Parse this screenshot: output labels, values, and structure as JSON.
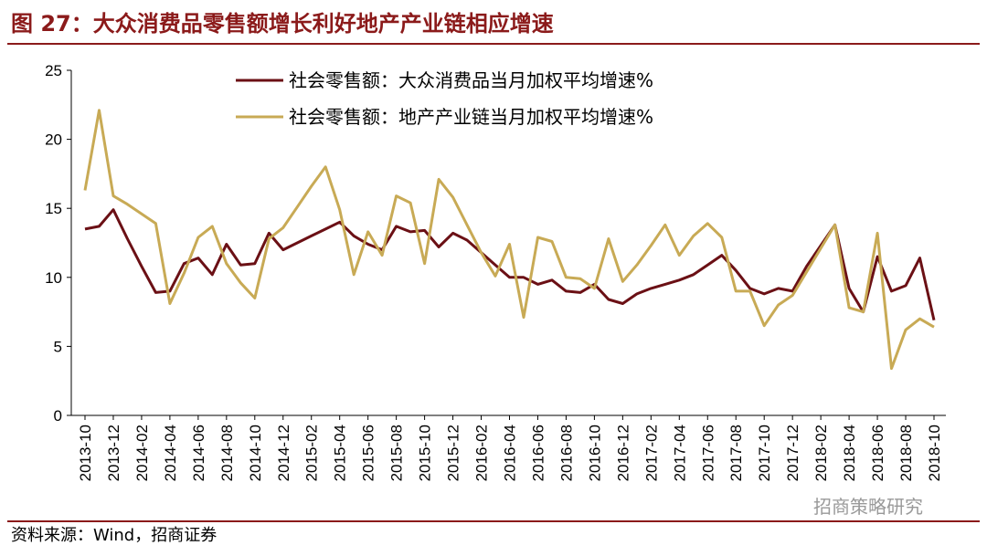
{
  "chart_data": {
    "type": "line",
    "title": "图 27：大众消费品零售额增长利好地产产业链相应增速",
    "source": "资料来源：Wind，招商证券",
    "watermark": "招商策略研究",
    "categories": [
      "2013-10",
      null,
      "2013-12",
      null,
      "2014-02",
      null,
      "2014-04",
      null,
      "2014-06",
      null,
      "2014-08",
      null,
      "2014-10",
      null,
      "2014-12",
      null,
      "2015-02",
      null,
      "2015-04",
      null,
      "2015-06",
      null,
      "2015-08",
      null,
      "2015-10",
      null,
      "2015-12",
      null,
      "2016-02",
      null,
      "2016-04",
      null,
      "2016-06",
      null,
      "2016-08",
      null,
      "2016-10",
      null,
      "2016-12",
      null,
      "2017-02",
      null,
      "2017-04",
      null,
      "2017-06",
      null,
      "2017-08",
      null,
      "2017-10",
      null,
      "2017-12",
      null,
      "2018-02",
      null,
      "2018-04",
      null,
      "2018-06",
      null,
      "2018-08",
      null,
      "2018-10"
    ],
    "series": [
      {
        "name": "社会零售额：大众消费品当月加权平均增速%",
        "color": "#6b1015",
        "values": [
          13.5,
          13.7,
          14.9,
          12.8,
          10.8,
          8.9,
          9.0,
          11.0,
          11.4,
          10.2,
          12.4,
          10.9,
          11.0,
          13.2,
          12.0,
          12.5,
          13.0,
          13.5,
          14.0,
          13.0,
          12.4,
          12.0,
          13.7,
          13.3,
          13.4,
          12.2,
          13.2,
          12.7,
          11.8,
          10.9,
          10.0,
          10.0,
          9.5,
          9.8,
          9.0,
          8.9,
          9.5,
          8.4,
          8.1,
          8.8,
          9.2,
          9.5,
          9.8,
          10.2,
          10.9,
          11.6,
          10.5,
          9.2,
          8.8,
          9.2,
          9.0,
          10.8,
          12.3,
          13.8,
          9.2,
          7.5,
          11.5,
          9.0,
          9.4,
          11.4,
          6.9
        ]
      },
      {
        "name": "社会零售额：地产产业链当月加权平均增速%",
        "color": "#c8aa55",
        "values": [
          16.3,
          22.1,
          15.9,
          15.3,
          14.6,
          13.9,
          8.1,
          10.3,
          12.9,
          13.7,
          11.0,
          9.6,
          8.5,
          12.8,
          13.6,
          15.1,
          16.6,
          18.0,
          14.9,
          10.2,
          13.3,
          11.6,
          15.9,
          15.4,
          11.0,
          17.1,
          15.8,
          13.8,
          11.8,
          10.1,
          12.4,
          7.1,
          12.9,
          12.6,
          10.0,
          9.9,
          9.2,
          12.8,
          9.7,
          10.9,
          12.3,
          13.8,
          11.6,
          13.0,
          13.9,
          12.9,
          9.0,
          9.0,
          6.5,
          8.0,
          8.7,
          10.4,
          12.1,
          13.8,
          7.8,
          7.5,
          13.2,
          3.4,
          6.2,
          7.0,
          6.4
        ]
      }
    ],
    "ylim": [
      0,
      25
    ],
    "yticks": [
      0,
      5,
      10,
      15,
      20,
      25
    ],
    "grid": false,
    "legend": "upper center"
  }
}
